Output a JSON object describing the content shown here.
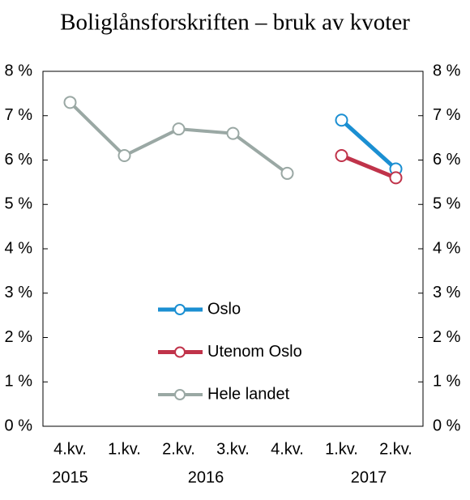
{
  "chart_data": {
    "type": "line",
    "title": "Boliglånsforskriften – bruk av kvoter",
    "categories": [
      "4.kv.",
      "1.kv.",
      "2.kv.",
      "3.kv.",
      "4.kv.",
      "1.kv.",
      "2.kv."
    ],
    "groups": [
      {
        "label": "2015",
        "span": 1
      },
      {
        "label": "2016",
        "span": 4
      },
      {
        "label": "2017",
        "span": 2
      }
    ],
    "series": [
      {
        "name": "Oslo",
        "color": "#1b8fd2",
        "values": [
          null,
          null,
          null,
          null,
          null,
          6.9,
          5.8
        ]
      },
      {
        "name": "Utenom Oslo",
        "color": "#c0334a",
        "values": [
          null,
          null,
          null,
          null,
          null,
          6.1,
          5.6
        ]
      },
      {
        "name": "Hele landet",
        "color": "#9aa8a4",
        "values": [
          7.3,
          6.1,
          6.7,
          6.6,
          5.7,
          null,
          null
        ]
      }
    ],
    "ylim": [
      0,
      8
    ],
    "yticks": [
      {
        "value": 0,
        "label": "0 %"
      },
      {
        "value": 1,
        "label": "1 %"
      },
      {
        "value": 2,
        "label": "2 %"
      },
      {
        "value": 3,
        "label": "3 %"
      },
      {
        "value": 4,
        "label": "4 %"
      },
      {
        "value": 5,
        "label": "5 %"
      },
      {
        "value": 6,
        "label": "6 %"
      },
      {
        "value": 7,
        "label": "7 %"
      },
      {
        "value": 8,
        "label": "8 %"
      }
    ],
    "y2lim": [
      0,
      8
    ],
    "y2ticks": [
      {
        "value": 0,
        "label": "0 %"
      },
      {
        "value": 1,
        "label": "1 %"
      },
      {
        "value": 2,
        "label": "2 %"
      },
      {
        "value": 3,
        "label": "3 %"
      },
      {
        "value": 4,
        "label": "4 %"
      },
      {
        "value": 5,
        "label": "5 %"
      },
      {
        "value": 6,
        "label": "6 %"
      },
      {
        "value": 7,
        "label": "7 %"
      },
      {
        "value": 8,
        "label": "8 %"
      }
    ],
    "legend": "center"
  }
}
